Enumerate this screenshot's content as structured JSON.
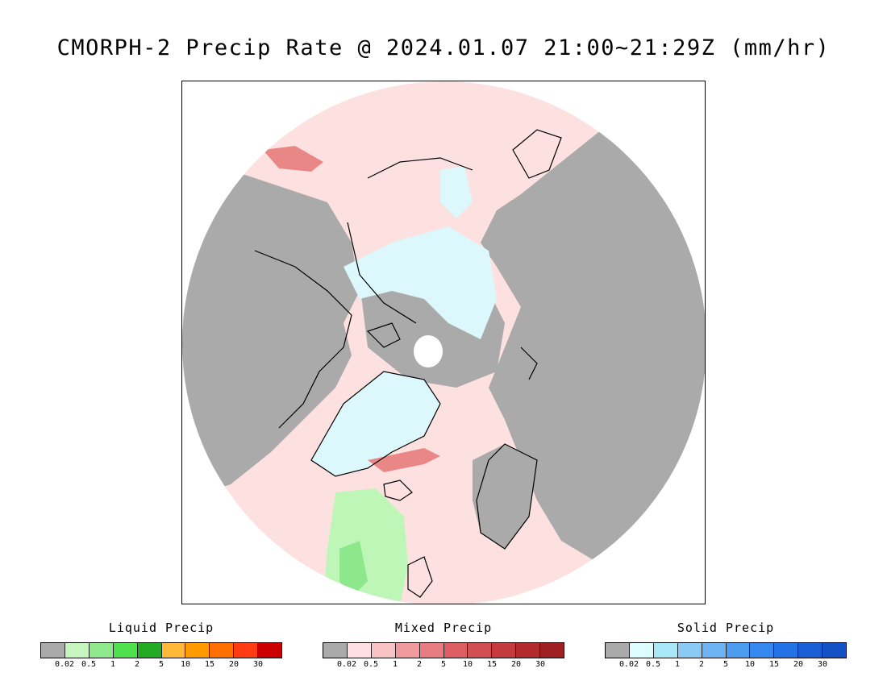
{
  "title": "CMORPH-2 Precip Rate @ 2024.01.07 21:00~21:29Z (mm/hr)",
  "map": {
    "projection": "north-polar-stereographic",
    "colors": {
      "background_no_precip": "#aaaaaa",
      "ocean_disk_mixed_light": "#fde1e1",
      "solid_light": "#dcf8fc",
      "liquid_light": "#bef6b8",
      "liquid_mid": "#8ce88a",
      "mixed_mid": "#e98686",
      "pole_hole": "#ffffff",
      "coastline": "#000000"
    }
  },
  "legends": [
    {
      "title": "Liquid Precip",
      "colors": [
        "#aaaaaa",
        "#c7f5c0",
        "#8fe88c",
        "#4fe04d",
        "#22aa22",
        "#ffb838",
        "#ff9a00",
        "#ff6e00",
        "#ff3c14",
        "#cc0000"
      ],
      "ticks": [
        "0.02",
        "0.5",
        "1",
        "2",
        "5",
        "10",
        "15",
        "20",
        "30"
      ]
    },
    {
      "title": "Mixed Precip",
      "colors": [
        "#aaaaaa",
        "#ffe0e2",
        "#f9c3c6",
        "#f09a9e",
        "#e87c80",
        "#dc5e62",
        "#d14e52",
        "#c43a3e",
        "#b22a2e",
        "#9e1e22"
      ],
      "ticks": [
        "0.02",
        "0.5",
        "1",
        "2",
        "5",
        "10",
        "15",
        "20",
        "30"
      ]
    },
    {
      "title": "Solid Precip",
      "colors": [
        "#aaaaaa",
        "#dcfcff",
        "#a8e8f8",
        "#8ccaf6",
        "#6eb4f2",
        "#4c9cf0",
        "#3488ee",
        "#2473e6",
        "#1a5ed6",
        "#1450c6"
      ],
      "ticks": [
        "0.02",
        "0.5",
        "1",
        "2",
        "5",
        "10",
        "15",
        "20",
        "30"
      ]
    }
  ]
}
